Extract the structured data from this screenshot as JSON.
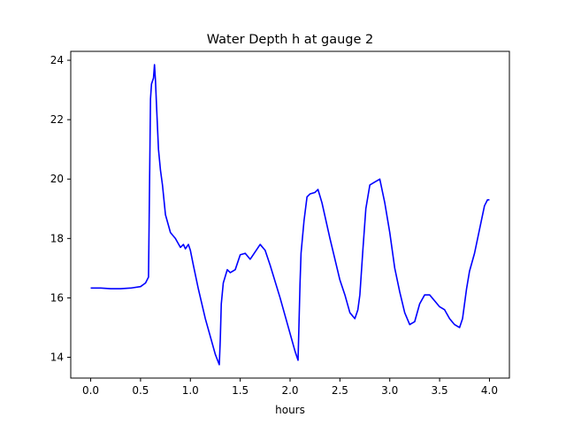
{
  "chart_data": {
    "type": "line",
    "title": "Water Depth h at gauge 2",
    "xlabel": "hours",
    "ylabel": "",
    "xlim": [
      -0.2,
      4.2
    ],
    "ylim": [
      13.3,
      24.3
    ],
    "xticks": [
      0.0,
      0.5,
      1.0,
      1.5,
      2.0,
      2.5,
      3.0,
      3.5,
      4.0
    ],
    "xtick_labels": [
      "0.0",
      "0.5",
      "1.0",
      "1.5",
      "2.0",
      "2.5",
      "3.0",
      "3.5",
      "4.0"
    ],
    "yticks": [
      14,
      16,
      18,
      20,
      22,
      24
    ],
    "ytick_labels": [
      "14",
      "16",
      "18",
      "20",
      "22",
      "24"
    ],
    "grid": false,
    "line_color": "#0000ff",
    "series": [
      {
        "x": [
          0.0,
          0.1,
          0.2,
          0.3,
          0.4,
          0.5,
          0.55,
          0.58,
          0.6,
          0.61,
          0.63,
          0.64,
          0.65,
          0.66,
          0.68,
          0.7,
          0.72,
          0.75,
          0.8,
          0.85,
          0.9,
          0.93,
          0.95,
          0.98,
          1.0,
          1.03,
          1.08,
          1.15,
          1.2,
          1.25,
          1.29,
          1.3,
          1.31,
          1.33,
          1.37,
          1.4,
          1.45,
          1.5,
          1.55,
          1.6,
          1.65,
          1.7,
          1.75,
          1.8,
          1.9,
          2.0,
          2.05,
          2.08,
          2.1,
          2.11,
          2.14,
          2.17,
          2.2,
          2.25,
          2.28,
          2.32,
          2.4,
          2.5,
          2.55,
          2.6,
          2.65,
          2.68,
          2.7,
          2.73,
          2.76,
          2.8,
          2.85,
          2.9,
          2.95,
          3.0,
          3.05,
          3.1,
          3.15,
          3.2,
          3.25,
          3.3,
          3.35,
          3.4,
          3.45,
          3.5,
          3.55,
          3.6,
          3.65,
          3.7,
          3.73,
          3.77,
          3.8,
          3.85,
          3.9,
          3.95,
          3.98,
          4.0
        ],
        "y": [
          16.33,
          16.33,
          16.31,
          16.31,
          16.33,
          16.38,
          16.5,
          16.7,
          22.7,
          23.2,
          23.4,
          23.85,
          23.3,
          22.5,
          21.0,
          20.3,
          19.8,
          18.8,
          18.2,
          18.0,
          17.7,
          17.8,
          17.65,
          17.8,
          17.6,
          17.1,
          16.3,
          15.3,
          14.7,
          14.1,
          13.75,
          14.6,
          15.8,
          16.5,
          16.95,
          16.85,
          16.95,
          17.45,
          17.5,
          17.3,
          17.55,
          17.8,
          17.6,
          17.1,
          16.0,
          14.8,
          14.2,
          13.9,
          16.5,
          17.5,
          18.6,
          19.4,
          19.5,
          19.55,
          19.65,
          19.2,
          18.0,
          16.6,
          16.1,
          15.5,
          15.3,
          15.6,
          16.1,
          17.6,
          19.0,
          19.8,
          19.9,
          20.0,
          19.2,
          18.2,
          17.0,
          16.2,
          15.5,
          15.1,
          15.2,
          15.8,
          16.1,
          16.1,
          15.9,
          15.7,
          15.6,
          15.3,
          15.1,
          15.0,
          15.3,
          16.3,
          16.9,
          17.5,
          18.3,
          19.1,
          19.3,
          19.3
        ]
      }
    ]
  }
}
